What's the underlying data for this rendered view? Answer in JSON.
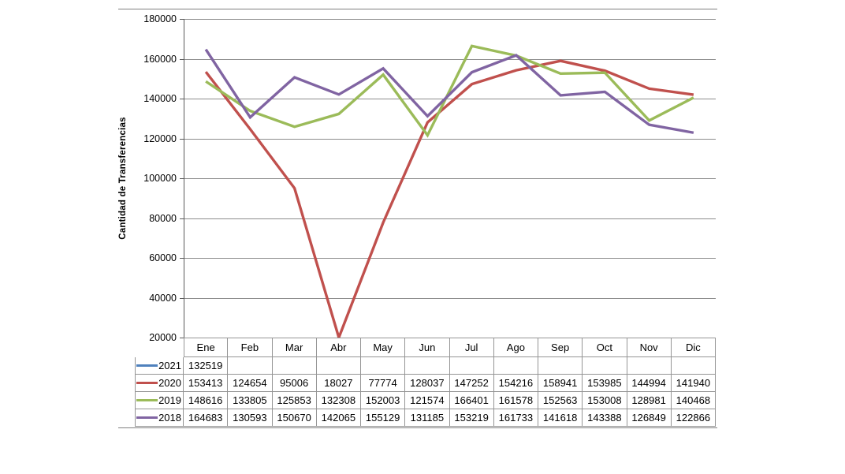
{
  "chart_data": {
    "type": "line",
    "title": "",
    "xlabel": "",
    "ylabel": "Cantidad de Transferencias",
    "categories": [
      "Ene",
      "Feb",
      "Mar",
      "Abr",
      "May",
      "Jun",
      "Jul",
      "Ago",
      "Sep",
      "Oct",
      "Nov",
      "Dic"
    ],
    "ylim": [
      20000,
      180000
    ],
    "y_ticks": [
      180000,
      160000,
      140000,
      120000,
      100000,
      80000,
      60000,
      40000,
      20000
    ],
    "grid": true,
    "legend_position": "data-table-left",
    "series": [
      {
        "name": "2021",
        "color": "#4F81BD",
        "values": [
          132519,
          null,
          null,
          null,
          null,
          null,
          null,
          null,
          null,
          null,
          null,
          null
        ]
      },
      {
        "name": "2020",
        "color": "#C0504D",
        "values": [
          153413,
          124654,
          95006,
          18027,
          77774,
          128037,
          147252,
          154216,
          158941,
          153985,
          144994,
          141940
        ]
      },
      {
        "name": "2019",
        "color": "#9BBB59",
        "values": [
          148616,
          133805,
          125853,
          132308,
          152003,
          121574,
          166401,
          161578,
          152563,
          153008,
          128981,
          140468
        ]
      },
      {
        "name": "2018",
        "color": "#8064A2",
        "values": [
          164683,
          130593,
          150670,
          142065,
          155129,
          131185,
          153219,
          161733,
          141618,
          143388,
          126849,
          122866
        ]
      }
    ],
    "colors": {
      "gridline": "#8c8c8c",
      "axis": "#595959",
      "table_border": "#959595",
      "frame_border": "#7f7f7f"
    }
  }
}
